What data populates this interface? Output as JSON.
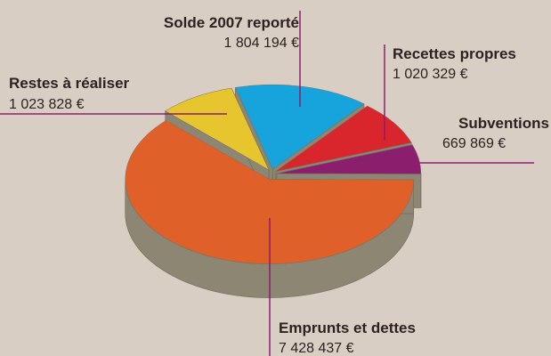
{
  "chart_data": {
    "type": "pie",
    "categories": [
      "Solde 2007 reporté",
      "Recettes propres",
      "Subventions",
      "Emprunts et dettes",
      "Restes à réaliser"
    ],
    "values": [
      1804194,
      1020329,
      669869,
      7428437,
      1023828
    ],
    "value_labels": [
      "1 804 194 €",
      "1 020 329 €",
      "669 869 €",
      "7 428 437 €",
      "1 023 828 €"
    ],
    "colors": [
      "#17a3dc",
      "#d8262c",
      "#8c1f6d",
      "#df6129",
      "#e6c52f"
    ],
    "side_color": "#8c8672"
  }
}
